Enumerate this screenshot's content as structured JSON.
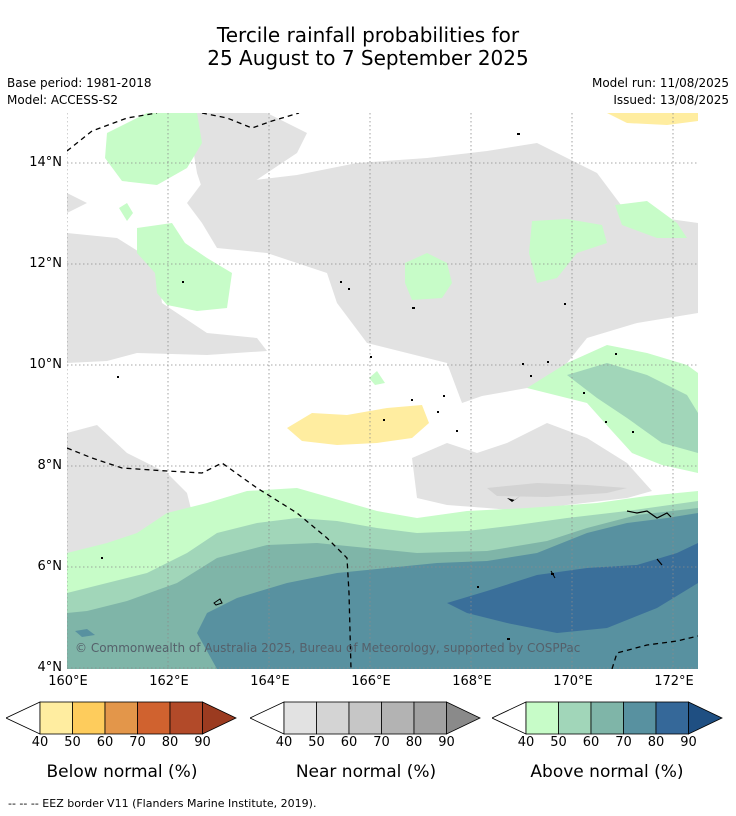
{
  "title": {
    "line1": "Tercile rainfall probabilities for",
    "line2": "25 August to 7 September 2025"
  },
  "meta": {
    "base_period": "Base period: 1981-2018",
    "model": "Model: ACCESS-S2",
    "model_run": "Model run: 11/08/2025",
    "issued": "Issued: 13/08/2025"
  },
  "map": {
    "lat_labels": [
      "14°N",
      "12°N",
      "10°N",
      "8°N",
      "6°N",
      "4°N"
    ],
    "lon_labels": [
      "160°E",
      "162°E",
      "164°E",
      "166°E",
      "168°E",
      "170°E",
      "172°E"
    ],
    "copyright": "© Commonwealth of Australia 2025, Bureau of Meteorology, supported by COSPPac"
  },
  "colorbars": [
    {
      "title": "Below normal (%)",
      "ticks": [
        "40",
        "50",
        "60",
        "70",
        "80",
        "90"
      ],
      "colors": [
        "#ffeda0",
        "#fecc5c",
        "#e3964a",
        "#d0622f",
        "#b24a29",
        "#9b3b20"
      ]
    },
    {
      "title": "Near normal (%)",
      "ticks": [
        "40",
        "50",
        "60",
        "70",
        "80",
        "90"
      ],
      "colors": [
        "#e2e2e2",
        "#d4d4d4",
        "#c6c6c6",
        "#b3b3b3",
        "#a1a1a1",
        "#8a8a8a"
      ]
    },
    {
      "title": "Above normal (%)",
      "ticks": [
        "40",
        "50",
        "60",
        "70",
        "80",
        "90"
      ],
      "colors": [
        "#c7fcc8",
        "#a1d6b9",
        "#7fb5a8",
        "#5891a0",
        "#356899",
        "#1f4f82"
      ]
    }
  ],
  "footer": "--  --  -- EEZ border V11 (Flanders Marine Institute, 2019)."
}
